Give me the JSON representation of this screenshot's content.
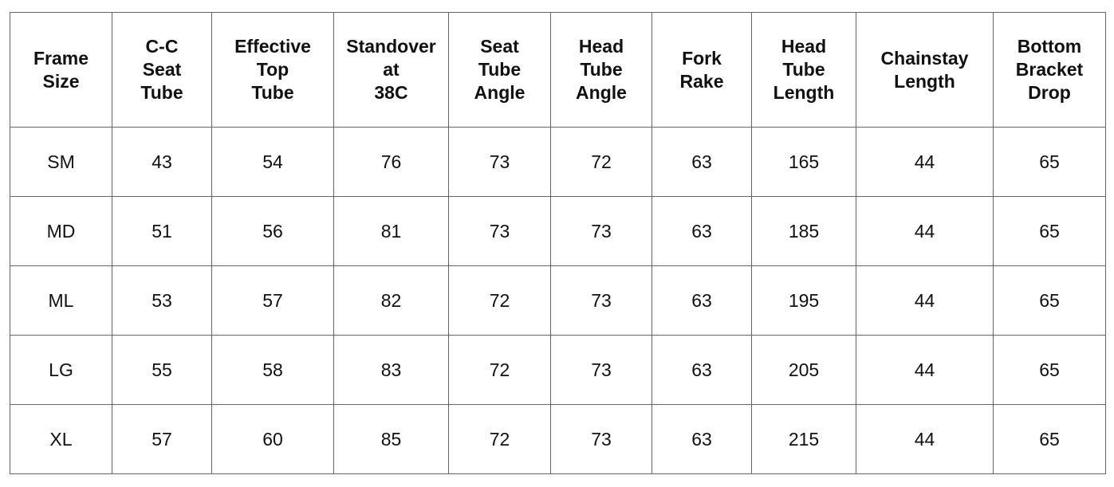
{
  "table": {
    "header": [
      [
        "Frame",
        "Size"
      ],
      [
        "C-C",
        "Seat",
        "Tube"
      ],
      [
        "Effective",
        "Top",
        "Tube"
      ],
      [
        "Standover",
        "at",
        "38C"
      ],
      [
        "Seat",
        "Tube",
        "Angle"
      ],
      [
        "Head",
        "Tube",
        "Angle"
      ],
      [
        "Fork",
        "Rake"
      ],
      [
        "Head",
        "Tube",
        "Length"
      ],
      [
        "Chainstay",
        "Length"
      ],
      [
        "Bottom",
        "Bracket",
        "Drop"
      ]
    ],
    "rows": [
      [
        "SM",
        43,
        54,
        76,
        73,
        72,
        63,
        165,
        44,
        65
      ],
      [
        "MD",
        51,
        56,
        81,
        73,
        73,
        63,
        185,
        44,
        65
      ],
      [
        "ML",
        53,
        57,
        82,
        72,
        73,
        63,
        195,
        44,
        65
      ],
      [
        "LG",
        55,
        58,
        83,
        72,
        73,
        63,
        205,
        44,
        65
      ],
      [
        "XL",
        57,
        60,
        85,
        72,
        73,
        63,
        215,
        44,
        65
      ]
    ]
  }
}
